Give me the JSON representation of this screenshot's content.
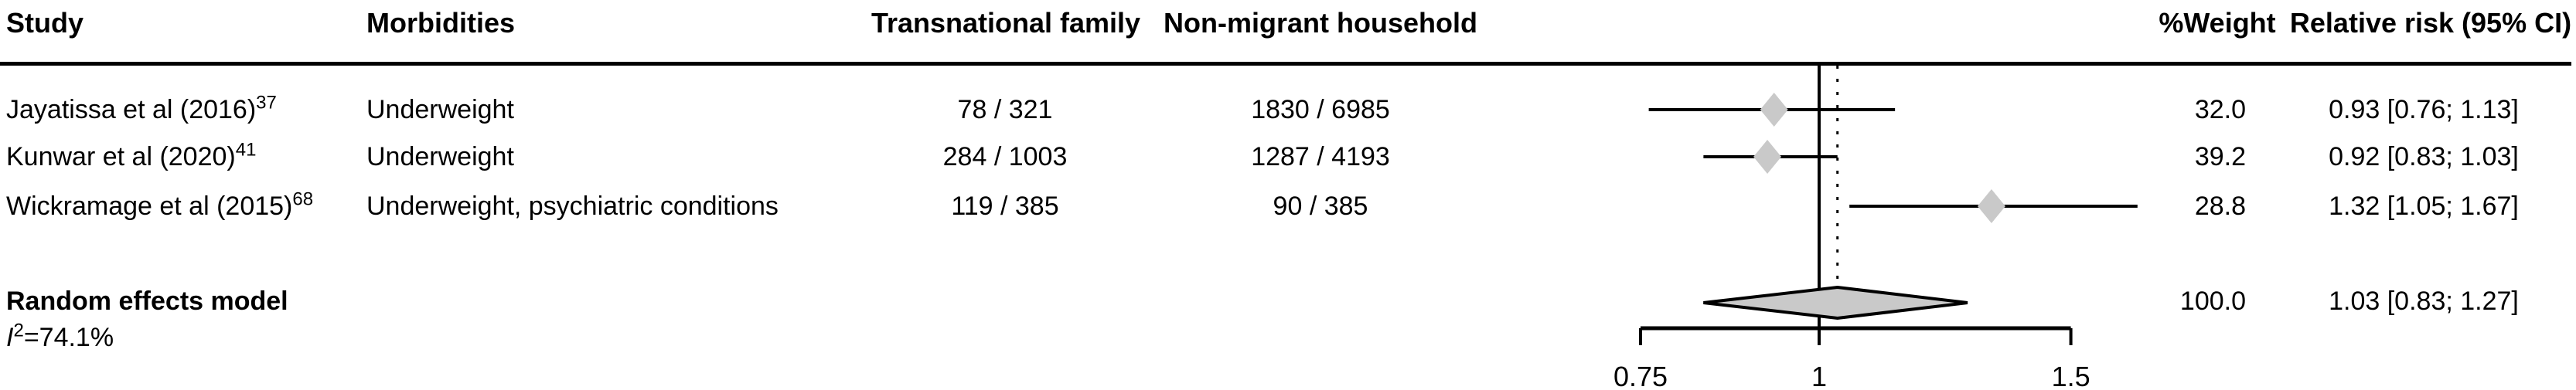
{
  "table": {
    "headers": {
      "study": "Study",
      "morbidities": "Morbidities",
      "transnational_family": "Transnational family",
      "non_migrant_household": "Non-migrant household",
      "weight": "%Weight",
      "relative_risk": "Relative risk (95% CI)"
    },
    "rows": [
      {
        "study": "Jayatissa et al (2016)",
        "ref": "37",
        "morbidities": "Underweight",
        "transnational_family": "78 / 321",
        "non_migrant_household": "1830 / 6985",
        "weight": "32.0",
        "rr_text": "0.93 [0.76; 1.13]"
      },
      {
        "study": "Kunwar et al (2020)",
        "ref": "41",
        "morbidities": "Underweight",
        "transnational_family": "284 / 1003",
        "non_migrant_household": "1287 / 4193",
        "weight": "39.2",
        "rr_text": "0.92 [0.83; 1.03]"
      },
      {
        "study": "Wickramage et al (2015)",
        "ref": "68",
        "morbidities": "Underweight, psychiatric conditions",
        "transnational_family": "119 / 385",
        "non_migrant_household": "90 / 385",
        "weight": "28.8",
        "rr_text": "1.32 [1.05; 1.67]"
      }
    ],
    "summary": {
      "label": "Random effects model",
      "weight": "100.0",
      "rr_text": "1.03 [0.83; 1.27]"
    },
    "heterogeneity": {
      "symbol": "I",
      "sup": "2",
      "text": "=74.1%"
    }
  },
  "chart_data": {
    "type": "forest",
    "x_scale": "log",
    "ref_line": 1,
    "axis": {
      "range": [
        0.75,
        1.5
      ],
      "ticks": [
        {
          "value": 0.75,
          "label": "0.75"
        },
        {
          "value": 1,
          "label": "1"
        },
        {
          "value": 1.5,
          "label": "1.5"
        }
      ]
    },
    "studies": [
      {
        "study": "Jayatissa et al (2016)",
        "rr": 0.93,
        "ci": [
          0.76,
          1.13
        ],
        "weight_pct": 32.0
      },
      {
        "study": "Kunwar et al (2020)",
        "rr": 0.92,
        "ci": [
          0.83,
          1.03
        ],
        "weight_pct": 39.2
      },
      {
        "study": "Wickramage et al (2015)",
        "rr": 1.32,
        "ci": [
          1.05,
          1.67
        ],
        "weight_pct": 28.8
      }
    ],
    "summary": {
      "label": "Random effects model",
      "rr": 1.03,
      "ci": [
        0.83,
        1.27
      ],
      "weight_pct": 100.0,
      "i_squared_pct": 74.1
    },
    "colors": {
      "marker_fill": "#c9c9c9",
      "line": "#000000"
    }
  }
}
